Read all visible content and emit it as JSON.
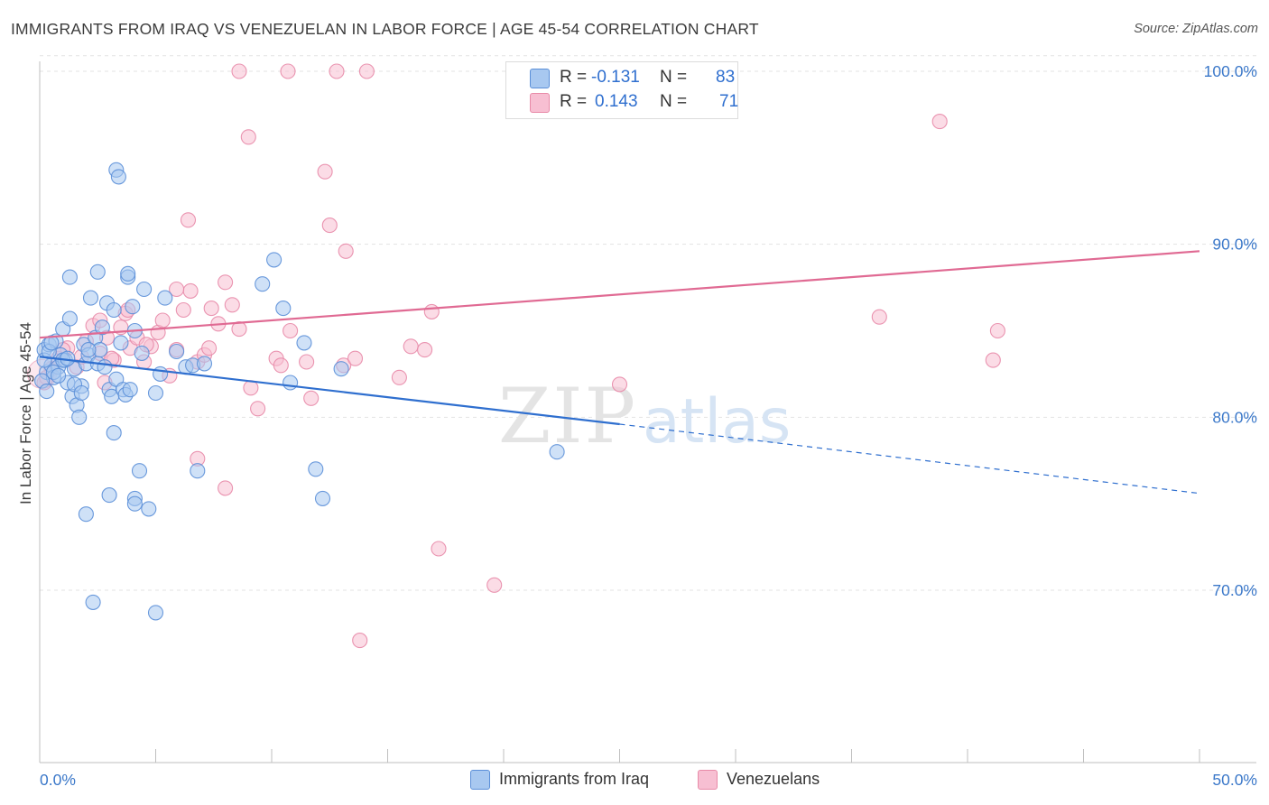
{
  "header": {
    "title": "IMMIGRANTS FROM IRAQ VS VENEZUELAN IN LABOR FORCE | AGE 45-54 CORRELATION CHART",
    "source": "Source: ZipAtlas.com"
  },
  "watermark": {
    "zip": "ZIP",
    "atlas": "atlas"
  },
  "colors": {
    "blue_fill": "#a8c8f0",
    "blue_stroke": "#5b8fd8",
    "blue_line": "#2f6fcf",
    "pink_fill": "#f7bfd2",
    "pink_stroke": "#e88aa8",
    "pink_line": "#e06a93",
    "tick_label": "#3b78c9",
    "grid": "#e3e3e3"
  },
  "legend": {
    "rows": [
      {
        "r_label": "R =",
        "r_value": "-0.131",
        "n_label": "N =",
        "n_value": "83",
        "color": "#a8c8f0"
      },
      {
        "r_label": "R =",
        "r_value": "0.143",
        "n_label": "N =",
        "n_value": "71",
        "color": "#f7bfd2"
      }
    ],
    "bottom": [
      {
        "label": "Immigrants from Iraq",
        "color": "#a8c8f0"
      },
      {
        "label": "Venezuelans",
        "color": "#f7bfd2"
      }
    ]
  },
  "chart_data": {
    "type": "scatter",
    "title": "IMMIGRANTS FROM IRAQ VS VENEZUELAN IN LABOR FORCE | AGE 45-54 CORRELATION CHART",
    "xlabel": "",
    "ylabel": "In Labor Force | Age 45-54",
    "xlim": [
      0,
      50
    ],
    "ylim": [
      60,
      102
    ],
    "x_tick_labels": [
      "0.0%",
      "50.0%"
    ],
    "y_ticks": [
      70,
      80,
      90,
      100
    ],
    "y_tick_labels": [
      "70.0%",
      "80.0%",
      "90.0%",
      "100.0%"
    ],
    "grid": true,
    "legend_position": "top-center",
    "series": [
      {
        "name": "Immigrants from Iraq",
        "r": -0.131,
        "n": 83,
        "trend": {
          "x0": 0,
          "y0": 83.5,
          "x1": 25,
          "y1": 79.6,
          "dashed_to_x": 50,
          "dashed_to_y": 75.6
        },
        "points": [
          [
            0.2,
            83.9
          ],
          [
            0.3,
            82.6
          ],
          [
            0.4,
            84.2
          ],
          [
            0.5,
            83.0
          ],
          [
            0.6,
            82.3
          ],
          [
            0.7,
            84.4
          ],
          [
            0.8,
            82.9
          ],
          [
            0.9,
            83.6
          ],
          [
            1.0,
            85.1
          ],
          [
            1.1,
            83.3
          ],
          [
            1.2,
            82.0
          ],
          [
            1.3,
            85.7
          ],
          [
            1.4,
            81.2
          ],
          [
            1.5,
            82.8
          ],
          [
            1.6,
            80.7
          ],
          [
            1.7,
            80.0
          ],
          [
            1.8,
            81.8
          ],
          [
            1.9,
            84.2
          ],
          [
            2.0,
            83.1
          ],
          [
            2.1,
            83.6
          ],
          [
            2.2,
            86.9
          ],
          [
            2.4,
            84.6
          ],
          [
            2.5,
            83.1
          ],
          [
            2.6,
            83.9
          ],
          [
            2.7,
            85.2
          ],
          [
            2.8,
            82.9
          ],
          [
            2.9,
            86.6
          ],
          [
            3.0,
            81.6
          ],
          [
            3.1,
            81.2
          ],
          [
            3.2,
            86.2
          ],
          [
            3.3,
            82.2
          ],
          [
            3.5,
            84.3
          ],
          [
            3.6,
            81.6
          ],
          [
            3.7,
            81.3
          ],
          [
            3.8,
            88.1
          ],
          [
            3.9,
            81.6
          ],
          [
            4.0,
            86.4
          ],
          [
            4.1,
            85.0
          ],
          [
            4.3,
            76.9
          ],
          [
            4.4,
            83.7
          ],
          [
            4.5,
            87.4
          ],
          [
            4.7,
            74.7
          ],
          [
            5.0,
            81.4
          ],
          [
            5.2,
            82.5
          ],
          [
            5.4,
            86.9
          ],
          [
            5.9,
            83.8
          ],
          [
            6.3,
            82.9
          ],
          [
            6.6,
            83.0
          ],
          [
            6.8,
            76.9
          ],
          [
            7.1,
            83.1
          ],
          [
            2.3,
            69.3
          ],
          [
            5.0,
            68.7
          ],
          [
            4.1,
            75.3
          ],
          [
            3.0,
            75.5
          ],
          [
            2.0,
            74.4
          ],
          [
            4.1,
            75.0
          ],
          [
            3.2,
            79.1
          ],
          [
            1.3,
            88.1
          ],
          [
            2.5,
            88.4
          ],
          [
            3.8,
            88.3
          ],
          [
            3.3,
            94.3
          ],
          [
            3.4,
            93.9
          ],
          [
            9.6,
            87.7
          ],
          [
            10.1,
            89.1
          ],
          [
            10.5,
            86.3
          ],
          [
            10.8,
            82.0
          ],
          [
            11.4,
            84.3
          ],
          [
            11.9,
            77.0
          ],
          [
            12.2,
            75.3
          ],
          [
            13.0,
            82.8
          ],
          [
            22.3,
            78.0
          ],
          [
            0.1,
            82.1
          ],
          [
            0.2,
            83.3
          ],
          [
            0.4,
            83.8
          ],
          [
            0.5,
            84.3
          ],
          [
            0.6,
            82.6
          ],
          [
            0.8,
            82.4
          ],
          [
            1.0,
            83.3
          ],
          [
            1.5,
            81.9
          ],
          [
            1.8,
            81.4
          ],
          [
            2.1,
            83.9
          ],
          [
            1.2,
            83.4
          ],
          [
            0.3,
            81.5
          ]
        ]
      },
      {
        "name": "Venezuelans",
        "r": 0.143,
        "n": 71,
        "trend": {
          "x0": 0,
          "y0": 84.6,
          "x1": 50,
          "y1": 89.6
        },
        "points": [
          [
            0.2,
            82.0
          ],
          [
            0.5,
            82.8
          ],
          [
            0.8,
            83.4
          ],
          [
            1.2,
            84.0
          ],
          [
            1.6,
            82.9
          ],
          [
            1.8,
            83.5
          ],
          [
            2.0,
            84.4
          ],
          [
            2.3,
            85.3
          ],
          [
            2.6,
            83.7
          ],
          [
            2.9,
            84.6
          ],
          [
            3.2,
            83.3
          ],
          [
            3.5,
            85.2
          ],
          [
            3.7,
            86.0
          ],
          [
            3.9,
            84.0
          ],
          [
            4.2,
            84.6
          ],
          [
            4.5,
            83.2
          ],
          [
            4.8,
            84.1
          ],
          [
            5.1,
            84.9
          ],
          [
            5.3,
            85.6
          ],
          [
            5.6,
            82.4
          ],
          [
            5.9,
            83.9
          ],
          [
            6.2,
            86.2
          ],
          [
            6.5,
            87.3
          ],
          [
            6.8,
            83.2
          ],
          [
            7.1,
            83.6
          ],
          [
            7.4,
            86.3
          ],
          [
            7.7,
            85.4
          ],
          [
            8.0,
            87.8
          ],
          [
            8.3,
            86.5
          ],
          [
            8.6,
            85.1
          ],
          [
            9.1,
            81.7
          ],
          [
            9.4,
            80.5
          ],
          [
            10.2,
            83.4
          ],
          [
            10.4,
            83.0
          ],
          [
            10.8,
            85.0
          ],
          [
            11.5,
            83.2
          ],
          [
            11.7,
            81.1
          ],
          [
            13.1,
            83.0
          ],
          [
            13.6,
            83.4
          ],
          [
            15.5,
            82.3
          ],
          [
            16.0,
            84.1
          ],
          [
            16.6,
            83.9
          ],
          [
            16.9,
            86.1
          ],
          [
            17.2,
            72.4
          ],
          [
            19.6,
            70.3
          ],
          [
            25.0,
            81.9
          ],
          [
            36.2,
            85.8
          ],
          [
            38.8,
            97.1
          ],
          [
            41.1,
            83.3
          ],
          [
            41.3,
            85.0
          ],
          [
            8.6,
            100.0
          ],
          [
            10.7,
            100.0
          ],
          [
            12.8,
            100.0
          ],
          [
            14.1,
            100.0
          ],
          [
            9.0,
            96.2
          ],
          [
            12.3,
            94.2
          ],
          [
            12.5,
            91.1
          ],
          [
            6.4,
            91.4
          ],
          [
            13.2,
            89.6
          ],
          [
            8.0,
            75.9
          ],
          [
            6.8,
            77.6
          ],
          [
            13.8,
            67.1
          ],
          [
            4.6,
            84.2
          ],
          [
            5.9,
            87.4
          ],
          [
            3.8,
            86.2
          ],
          [
            2.6,
            85.6
          ],
          [
            7.3,
            84.0
          ],
          [
            1.0,
            83.9
          ],
          [
            3.1,
            83.4
          ],
          [
            0.3,
            82.3
          ],
          [
            2.8,
            82.0
          ]
        ]
      }
    ]
  }
}
